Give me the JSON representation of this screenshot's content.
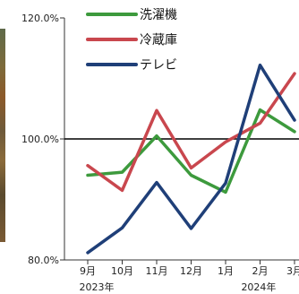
{
  "chart_data": {
    "type": "line",
    "categories": [
      "9月",
      "10月",
      "11月",
      "12月",
      "1月",
      "2月",
      "3月"
    ],
    "year_labels": [
      "2023年",
      "2024年"
    ],
    "ylim": [
      80,
      120
    ],
    "yticks": [
      {
        "value": 80,
        "label": "80.0%"
      },
      {
        "value": 100,
        "label": "100.0%"
      },
      {
        "value": 120,
        "label": "120.0%"
      }
    ],
    "reference_line": 100,
    "grid": false,
    "legend_position": "top",
    "series": [
      {
        "name": "洗濯機",
        "color": "#3d9a3d",
        "values": [
          94.0,
          94.5,
          100.5,
          94.0,
          91.2,
          104.8,
          101.2
        ]
      },
      {
        "name": "冷蔵庫",
        "color": "#c9474e",
        "values": [
          95.6,
          91.5,
          104.7,
          95.2,
          99.5,
          102.6,
          110.8
        ]
      },
      {
        "name": "テレビ",
        "color": "#1f3f78",
        "values": [
          81.2,
          85.3,
          92.8,
          85.2,
          92.7,
          112.2,
          103.1
        ]
      }
    ]
  }
}
